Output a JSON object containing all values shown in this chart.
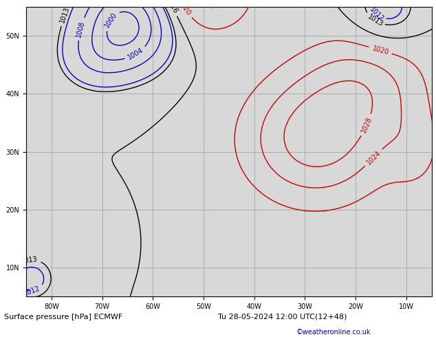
{
  "title_left": "Surface pressure [hPa] ECMWF",
  "title_right": "Tu 28-05-2024 12:00 UTC(12+48)",
  "credit": "©weatheronline.co.uk",
  "ocean_color": "#d8d8d8",
  "land_color": "#b8d8a0",
  "coast_color": "#606060",
  "grid_color": "#999999",
  "contour_color_blue": "#0000cc",
  "contour_color_red": "#cc0000",
  "contour_color_black": "#000000",
  "xlim": [
    -85,
    -5
  ],
  "ylim": [
    5,
    55
  ],
  "xticks": [
    -80,
    -70,
    -60,
    -50,
    -40,
    -30,
    -20,
    -10
  ],
  "yticks": [
    10,
    20,
    30,
    40,
    50
  ],
  "xlabel_labels": [
    "80W",
    "70W",
    "60W",
    "50W",
    "40W",
    "30W",
    "20W",
    "10W"
  ],
  "ylabel_labels": [
    "10N",
    "20N",
    "30N",
    "40N",
    "50N"
  ],
  "figsize": [
    6.34,
    4.9
  ],
  "dpi": 100
}
